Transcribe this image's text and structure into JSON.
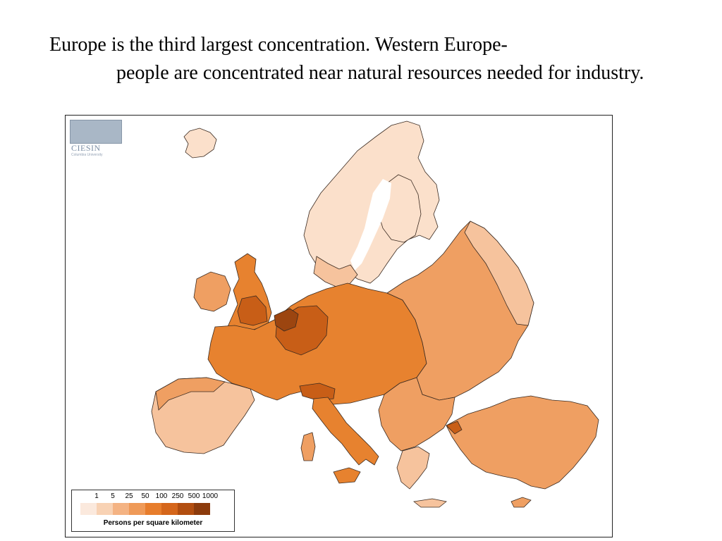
{
  "slide": {
    "line1": "Europe  is the third largest concentration.  Western Europe-",
    "line2": "people are concentrated near natural resources needed for industry."
  },
  "map": {
    "logo_text": "CIESIN",
    "logo_subtext": "Columbia University",
    "legend": {
      "title": "Persons per square kilometer",
      "breaks": [
        "1",
        "5",
        "25",
        "50",
        "100",
        "250",
        "500",
        "1000"
      ],
      "colors": [
        "#fbe9dd",
        "#f8d2b4",
        "#f4b383",
        "#ef9a58",
        "#e77d2c",
        "#d5661b",
        "#b24e10",
        "#8c3b0c"
      ]
    },
    "region_colors": {
      "sparse": "#fbe0cb",
      "low": "#f6c39d",
      "medium": "#ef9f62",
      "high": "#e7822f",
      "dense": "#c85e17",
      "very_dense": "#9c4510"
    }
  }
}
